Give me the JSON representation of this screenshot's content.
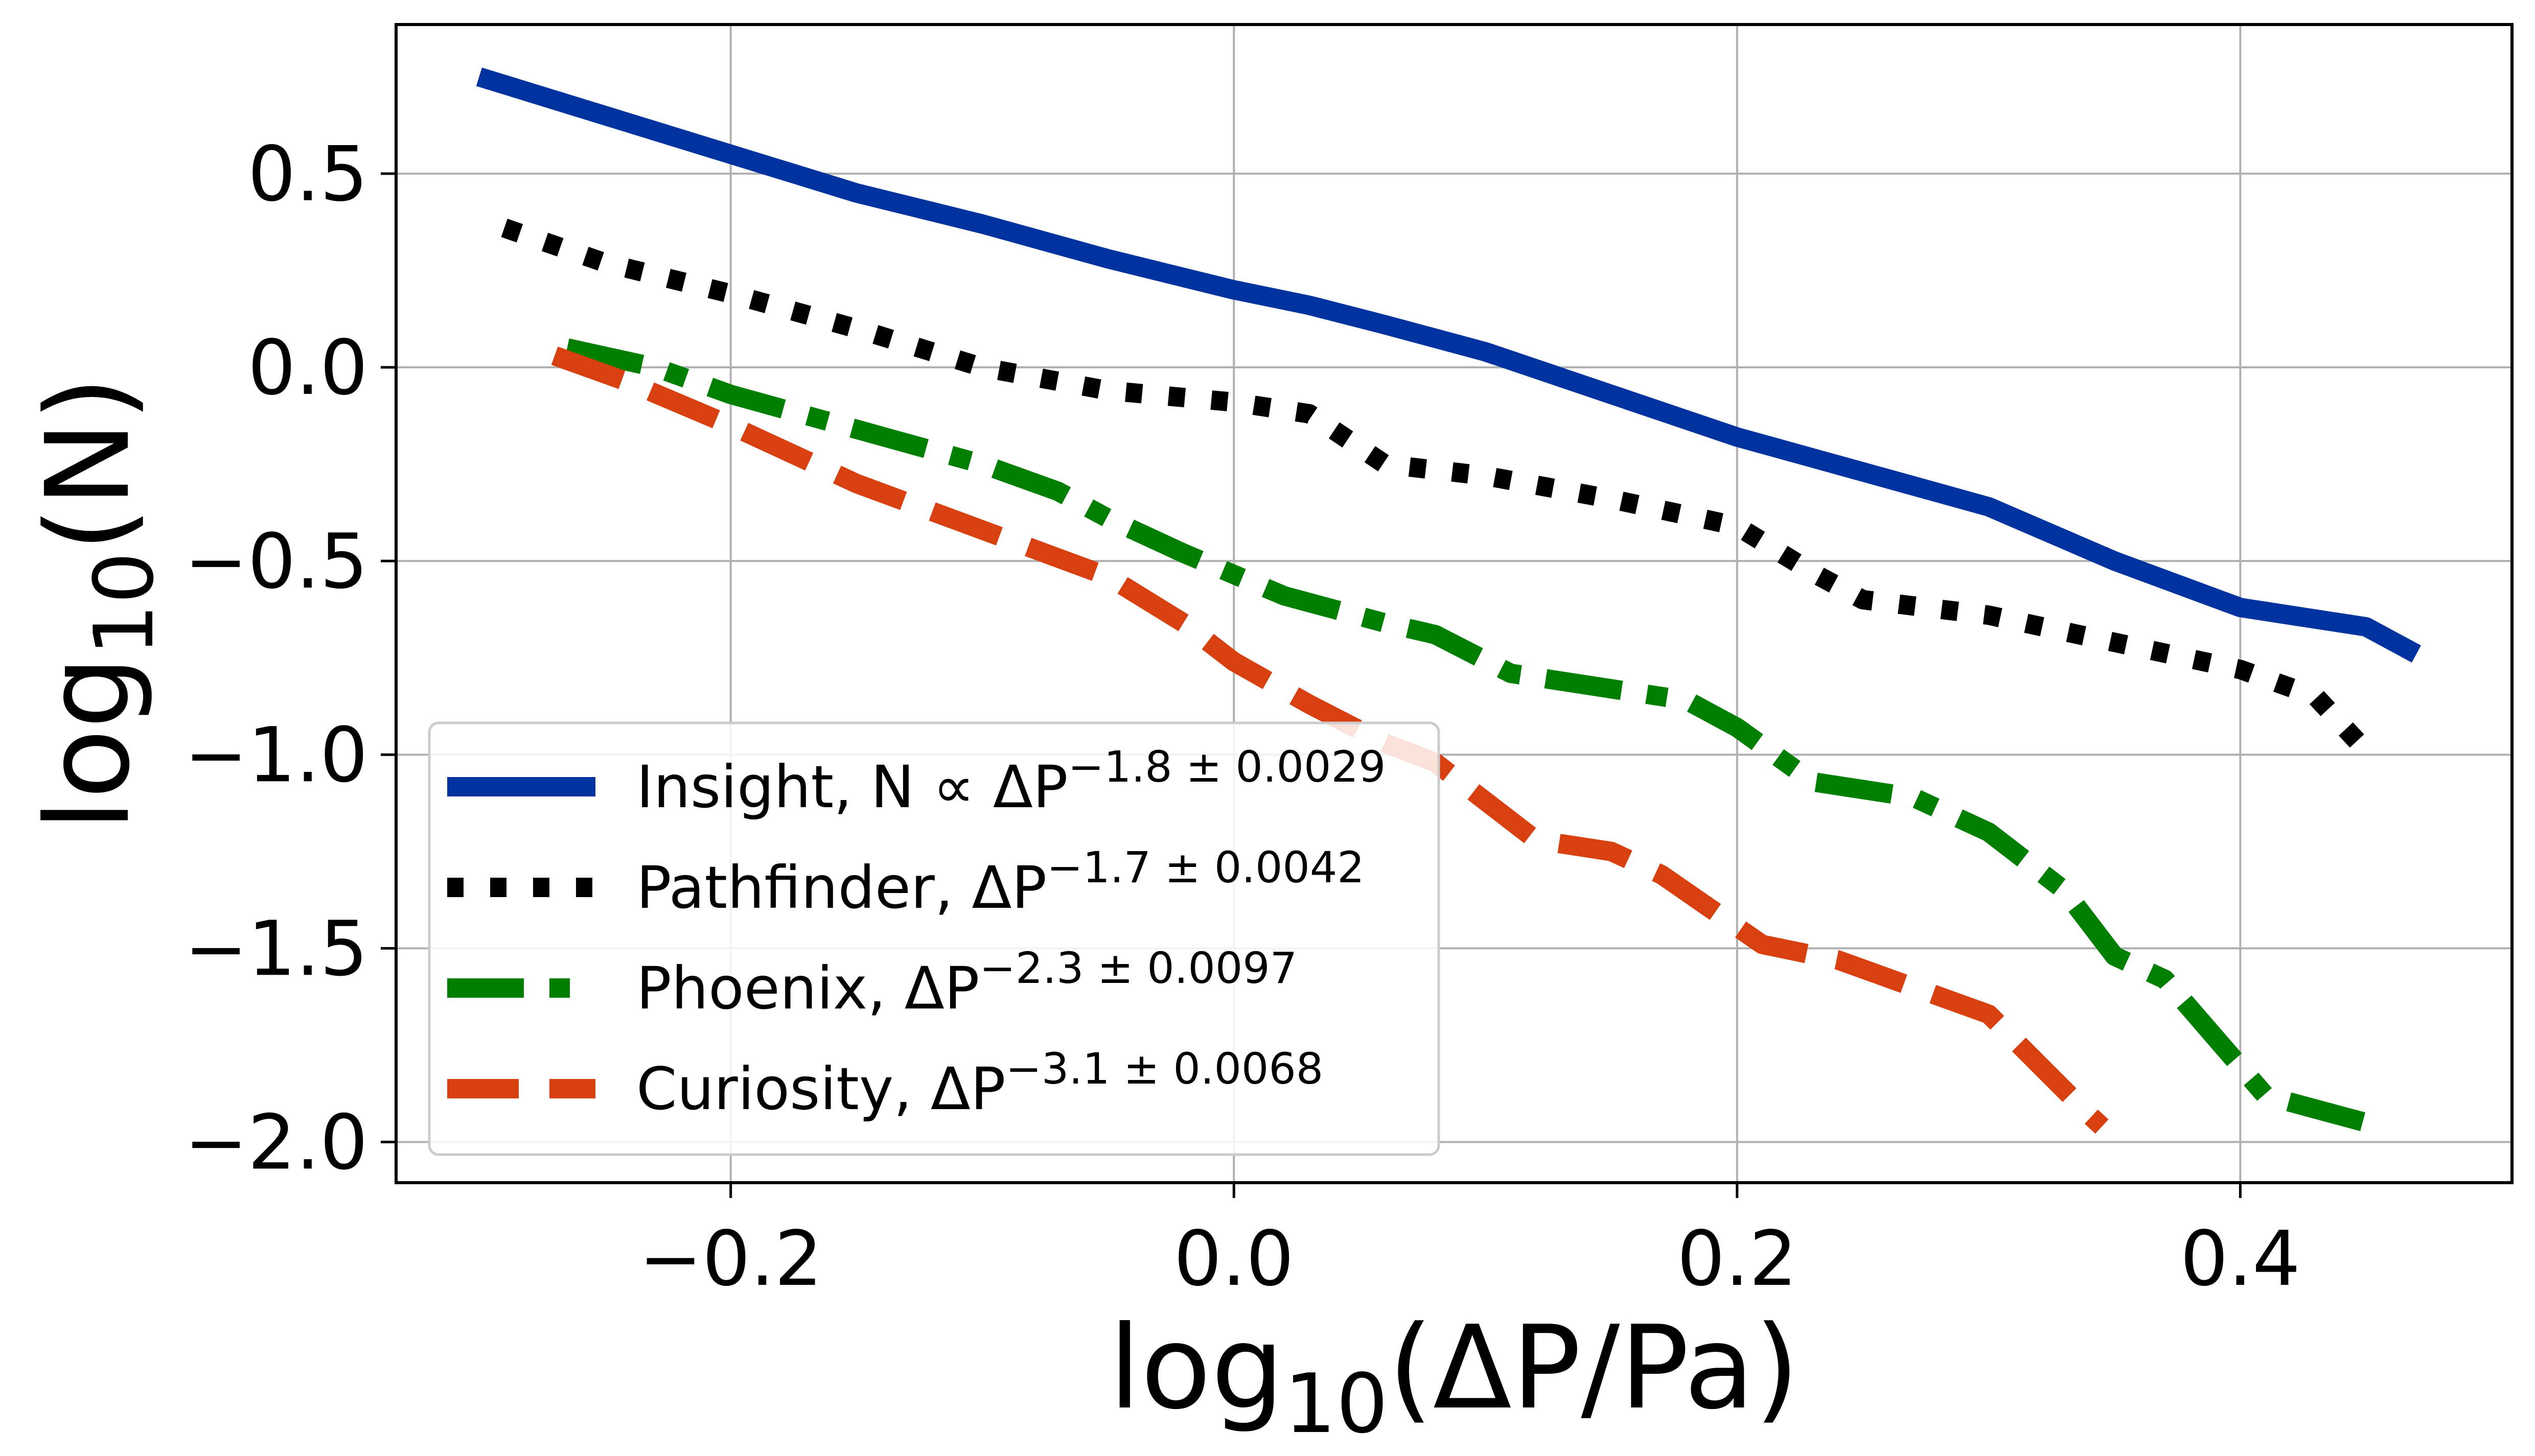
{
  "chart_data": {
    "type": "line",
    "title": "",
    "xlabel": {
      "prefix": "log",
      "sub": "10",
      "body": "(ΔP/Pa)"
    },
    "ylabel": {
      "prefix": "log",
      "sub": "10",
      "body": "(N)"
    },
    "xlim": [
      -0.333,
      0.508
    ],
    "ylim": [
      -2.105,
      0.885
    ],
    "xticks": [
      {
        "value": -0.2,
        "label": "−0.2"
      },
      {
        "value": 0.0,
        "label": "0.0"
      },
      {
        "value": 0.2,
        "label": "0.2"
      },
      {
        "value": 0.4,
        "label": "0.4"
      }
    ],
    "yticks": [
      {
        "value": 0.5,
        "label": "0.5"
      },
      {
        "value": 0.0,
        "label": "0.0"
      },
      {
        "value": -0.5,
        "label": "−0.5"
      },
      {
        "value": -1.0,
        "label": "−1.0"
      },
      {
        "value": -1.5,
        "label": "−1.5"
      },
      {
        "value": -2.0,
        "label": "−2.0"
      }
    ],
    "grid": true,
    "legend_position": "lower-left",
    "series": [
      {
        "name": "Insight",
        "legend_main": "Insight, N ∝ ΔP",
        "legend_exp": "−1.8 ± 0.0029",
        "color": "#0033a0",
        "style": "solid",
        "x": [
          -0.3,
          -0.25,
          -0.2,
          -0.15,
          -0.1,
          -0.05,
          0.0,
          0.03,
          0.06,
          0.1,
          0.15,
          0.2,
          0.25,
          0.3,
          0.35,
          0.4,
          0.45,
          0.47
        ],
        "y": [
          0.75,
          0.65,
          0.55,
          0.45,
          0.37,
          0.28,
          0.2,
          0.16,
          0.11,
          0.04,
          -0.07,
          -0.18,
          -0.27,
          -0.36,
          -0.5,
          -0.62,
          -0.67,
          -0.74
        ]
      },
      {
        "name": "Pathfinder",
        "legend_main": "Pathfinder, ΔP",
        "legend_exp": "−1.7 ± 0.0042",
        "color": "#000000",
        "style": "dotted",
        "x": [
          -0.29,
          -0.25,
          -0.2,
          -0.15,
          -0.1,
          -0.05,
          0.0,
          0.03,
          0.06,
          0.1,
          0.15,
          0.2,
          0.23,
          0.25,
          0.3,
          0.35,
          0.4,
          0.43,
          0.45
        ],
        "y": [
          0.36,
          0.27,
          0.19,
          0.1,
          0.0,
          -0.06,
          -0.09,
          -0.12,
          -0.25,
          -0.28,
          -0.34,
          -0.41,
          -0.53,
          -0.6,
          -0.64,
          -0.71,
          -0.78,
          -0.85,
          -0.99
        ]
      },
      {
        "name": "Phoenix",
        "legend_main": "Phoenix, ΔP",
        "legend_exp": "−2.3 ± 0.0097",
        "color": "#007f00",
        "style": "dashdot",
        "x": [
          -0.265,
          -0.23,
          -0.2,
          -0.15,
          -0.1,
          -0.07,
          -0.05,
          -0.02,
          0.02,
          0.06,
          0.08,
          0.11,
          0.15,
          0.18,
          0.2,
          0.23,
          0.27,
          0.3,
          0.33,
          0.35,
          0.37,
          0.39,
          0.41,
          0.45
        ],
        "y": [
          0.05,
          0.0,
          -0.07,
          -0.16,
          -0.25,
          -0.32,
          -0.39,
          -0.48,
          -0.59,
          -0.66,
          -0.69,
          -0.79,
          -0.83,
          -0.86,
          -0.93,
          -1.07,
          -1.11,
          -1.2,
          -1.35,
          -1.52,
          -1.58,
          -1.73,
          -1.88,
          -1.95
        ]
      },
      {
        "name": "Curiosity",
        "legend_main": "Curiosity, ΔP",
        "legend_exp": "−3.1 ± 0.0068",
        "color": "#d94010",
        "style": "dashed",
        "x": [
          -0.27,
          -0.24,
          -0.2,
          -0.15,
          -0.1,
          -0.05,
          -0.02,
          0.0,
          0.03,
          0.06,
          0.08,
          0.1,
          0.12,
          0.15,
          0.17,
          0.19,
          0.21,
          0.24,
          0.27,
          0.3,
          0.32,
          0.34,
          0.345
        ],
        "y": [
          0.03,
          -0.04,
          -0.15,
          -0.3,
          -0.42,
          -0.54,
          -0.66,
          -0.76,
          -0.87,
          -0.97,
          -1.02,
          -1.12,
          -1.22,
          -1.25,
          -1.31,
          -1.4,
          -1.49,
          -1.53,
          -1.6,
          -1.67,
          -1.8,
          -1.93,
          -1.96
        ]
      }
    ]
  }
}
